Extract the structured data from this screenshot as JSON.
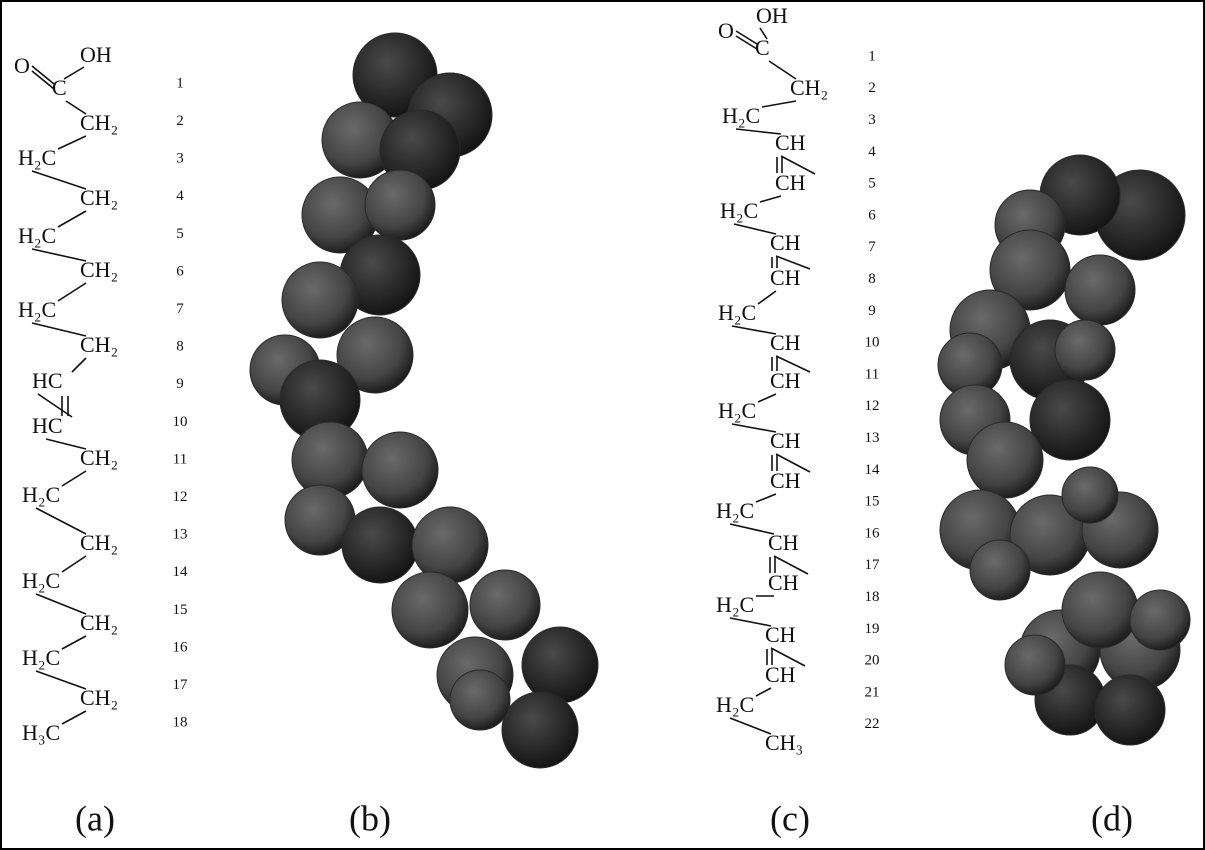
{
  "figure": {
    "panels": [
      {
        "label": "(a)",
        "structure": {
          "atoms": [
            "O",
            "OH",
            "C",
            "CH₂",
            "H₂C",
            "CH₂",
            "H₂C",
            "CH₂",
            "H₂C",
            "CH₂",
            "HC",
            "HC",
            "CH₂",
            "H₂C",
            "CH₂",
            "H₂C",
            "CH₂",
            "H₂C",
            "CH₂",
            "H₃C"
          ],
          "numbers": [
            "1",
            "2",
            "3",
            "4",
            "5",
            "6",
            "7",
            "8",
            "9",
            "10",
            "11",
            "12",
            "13",
            "14",
            "15",
            "16",
            "17",
            "18"
          ]
        }
      },
      {
        "label": "(b)"
      },
      {
        "label": "(c)",
        "structure": {
          "atoms": [
            "O",
            "OH",
            "C",
            "CH₂",
            "H₂C",
            "CH",
            "CH",
            "H₂C",
            "CH",
            "CH",
            "H₂C",
            "CH",
            "CH",
            "H₂C",
            "CH",
            "CH",
            "H₂C",
            "CH",
            "CH",
            "H₂C",
            "CH",
            "CH",
            "H₂C",
            "CH₃"
          ],
          "numbers": [
            "1",
            "2",
            "3",
            "4",
            "5",
            "6",
            "7",
            "8",
            "9",
            "10",
            "11",
            "12",
            "13",
            "14",
            "15",
            "16",
            "17",
            "18",
            "19",
            "20",
            "21",
            "22"
          ]
        }
      },
      {
        "label": "(d)"
      }
    ]
  }
}
